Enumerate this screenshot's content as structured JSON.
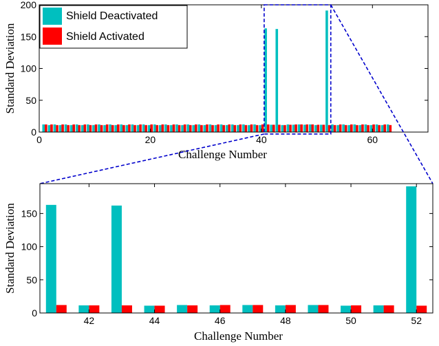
{
  "colors": {
    "deactivated": "#00BFBF",
    "activated": "#FF0000",
    "zoom_box": "#0000CC"
  },
  "chart_data": [
    {
      "type": "bar",
      "title": "",
      "xlabel": "Challenge Number",
      "ylabel": "Standard Deviation",
      "xlim": [
        0,
        70
      ],
      "ylim": [
        0,
        200
      ],
      "xticks": [
        0,
        20,
        40,
        60
      ],
      "yticks": [
        0,
        50,
        100,
        150,
        200
      ],
      "legend": {
        "placement": "top-left",
        "entries": [
          "Shield Deactivated",
          "Shield Activated"
        ]
      },
      "x": [
        1,
        2,
        3,
        4,
        5,
        6,
        7,
        8,
        9,
        10,
        11,
        12,
        13,
        14,
        15,
        16,
        17,
        18,
        19,
        20,
        21,
        22,
        23,
        24,
        25,
        26,
        27,
        28,
        29,
        30,
        31,
        32,
        33,
        34,
        35,
        36,
        37,
        38,
        39,
        40,
        41,
        42,
        43,
        44,
        45,
        46,
        47,
        48,
        49,
        50,
        51,
        52,
        53,
        54,
        55,
        56,
        57,
        58,
        59,
        60,
        61,
        62,
        63
      ],
      "series": [
        {
          "name": "Shield Deactivated",
          "values": [
            12,
            11,
            12,
            11,
            12,
            11,
            12,
            11,
            12,
            11,
            12,
            11,
            12,
            11,
            12,
            11,
            12,
            11,
            12,
            11,
            12,
            11,
            12,
            11,
            12,
            11,
            12,
            11,
            12,
            11,
            12,
            11,
            12,
            11,
            12,
            11,
            12,
            11,
            12,
            11,
            163,
            11.5,
            162,
            11,
            12,
            11.5,
            12,
            11.5,
            12,
            11,
            11.5,
            191,
            12,
            11,
            12,
            11,
            12,
            11,
            12,
            11,
            12,
            11,
            12
          ]
        },
        {
          "name": "Shield Activated",
          "values": [
            12,
            12,
            11,
            12,
            11,
            12,
            11,
            12,
            11,
            12,
            11,
            12,
            11,
            12,
            11,
            12,
            11,
            12,
            11,
            12,
            11,
            12,
            11,
            12,
            11,
            12,
            11,
            12,
            11,
            12,
            11,
            12,
            11,
            12,
            11,
            12,
            11,
            12,
            11,
            12,
            12,
            11.5,
            11.5,
            11,
            11.5,
            12,
            12,
            12,
            12,
            11.5,
            11.5,
            11,
            11,
            12,
            11,
            12,
            11,
            12,
            11,
            12,
            11,
            12,
            11
          ]
        }
      ],
      "zoom_region": {
        "x": [
          40.5,
          52.5
        ],
        "y": [
          -3,
          200
        ]
      }
    },
    {
      "type": "bar",
      "title": "",
      "xlabel": "Challenge Number",
      "ylabel": "Standard Deviation",
      "xlim": [
        40.5,
        52.5
      ],
      "ylim": [
        0,
        195
      ],
      "xticks": [
        42,
        44,
        46,
        48,
        50,
        52
      ],
      "yticks": [
        0,
        50,
        100,
        150
      ],
      "x": [
        41,
        42,
        43,
        44,
        45,
        46,
        47,
        48,
        49,
        50,
        51,
        52
      ],
      "series": [
        {
          "name": "Shield Deactivated",
          "values": [
            163,
            11.5,
            162,
            11,
            12,
            11.5,
            12,
            11.5,
            12,
            11,
            11.5,
            191
          ]
        },
        {
          "name": "Shield Activated",
          "values": [
            12,
            11.5,
            11.5,
            11,
            11.5,
            12,
            12,
            12,
            12,
            11.5,
            11.5,
            11
          ]
        }
      ]
    }
  ]
}
